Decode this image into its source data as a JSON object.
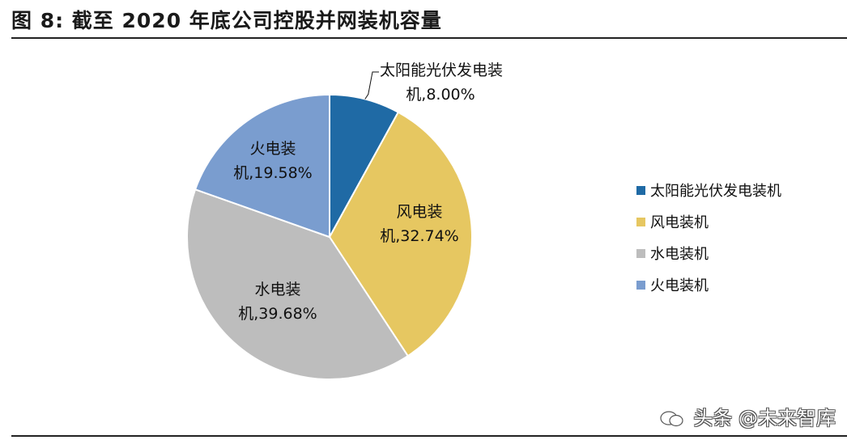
{
  "figure": {
    "title": "图  8:  截至 2020 年底公司控股并网装机容量"
  },
  "watermark": {
    "text": "头条 @未来智库"
  },
  "chart_data": {
    "type": "pie",
    "title": "",
    "start_angle_deg": 0,
    "direction": "clockwise",
    "legend_position": "right",
    "slices": [
      {
        "name": "太阳能光伏发电装机",
        "label_line1": "太阳能光伏发电装",
        "label_line2": "机,8.00%",
        "value": 8.0,
        "color": "#1f6aa5"
      },
      {
        "name": "风电装机",
        "label_line1": "风电装",
        "label_line2": "机,32.74%",
        "value": 32.74,
        "color": "#e6c761"
      },
      {
        "name": "水电装机",
        "label_line1": "水电装",
        "label_line2": "机,39.68%",
        "value": 39.68,
        "color": "#bdbdbd"
      },
      {
        "name": "火电装机",
        "label_line1": "火电装",
        "label_line2": "机,19.58%",
        "value": 19.58,
        "color": "#7a9dcf"
      }
    ]
  }
}
